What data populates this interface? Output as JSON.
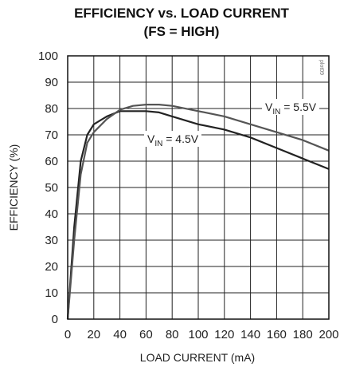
{
  "chart_data": {
    "type": "line",
    "title": "EFFICIENCY vs. LOAD CURRENT",
    "subtitle": "(FS = HIGH)",
    "xlabel": "LOAD CURRENT (mA)",
    "ylabel": "EFFICIENCY (%)",
    "xlim": [
      0,
      200
    ],
    "ylim": [
      0,
      100
    ],
    "xticks": [
      "0",
      "20",
      "40",
      "60",
      "80",
      "100",
      "120",
      "140",
      "160",
      "180",
      "200"
    ],
    "yticks": [
      "0",
      "10",
      "20",
      "30",
      "40",
      "50",
      "60",
      "70",
      "80",
      "90",
      "100"
    ],
    "grid": true,
    "figure_code": "plot09",
    "series": [
      {
        "label_prefix": "V",
        "label_sub": "IN",
        "label_suffix": " = 5.5V",
        "color": "#222222",
        "x": [
          0,
          5,
          10,
          15,
          20,
          30,
          40,
          50,
          60,
          70,
          80,
          100,
          120,
          140,
          160,
          180,
          200
        ],
        "y": [
          0,
          35,
          60,
          70,
          74,
          77,
          79,
          79,
          79,
          78.5,
          77,
          74,
          72,
          69,
          65,
          61,
          57
        ]
      },
      {
        "label_prefix": "V",
        "label_sub": "IN",
        "label_suffix": " = 4.5V",
        "color": "#555555",
        "x": [
          0,
          5,
          10,
          15,
          20,
          30,
          40,
          50,
          60,
          70,
          80,
          100,
          120,
          140,
          160,
          180,
          200
        ],
        "y": [
          0,
          30,
          55,
          67,
          71,
          76,
          79.5,
          81,
          81.5,
          81.5,
          81,
          79,
          77,
          74,
          71,
          68,
          64
        ]
      }
    ]
  }
}
